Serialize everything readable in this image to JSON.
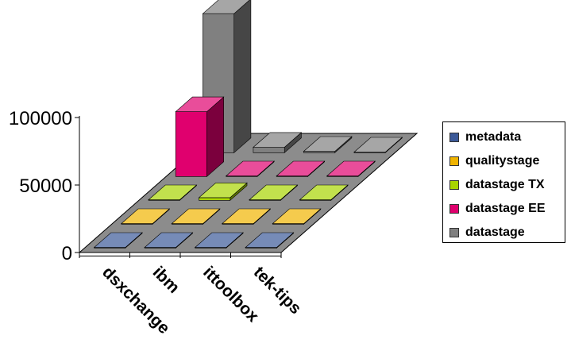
{
  "chart_data": {
    "type": "bar",
    "subtype": "3d-column",
    "title": "",
    "xlabel": "",
    "ylabel": "",
    "categories": [
      "dsxchange",
      "ibm",
      "ittoolbox",
      "tek-tips"
    ],
    "series": [
      {
        "name": "metadata",
        "color": "#3B5998",
        "values": [
          0,
          0,
          0,
          0
        ]
      },
      {
        "name": "qualitystage",
        "color": "#F0B400",
        "values": [
          0,
          0,
          0,
          0
        ]
      },
      {
        "name": "datastage TX",
        "color": "#A8D400",
        "values": [
          0,
          2000,
          0,
          0
        ]
      },
      {
        "name": "datastage EE",
        "color": "#E0006E",
        "values": [
          48000,
          0,
          0,
          0
        ]
      },
      {
        "name": "datastage",
        "color": "#808080",
        "values": [
          103000,
          4000,
          1000,
          0
        ]
      }
    ],
    "yticks": [
      0,
      50000,
      100000
    ],
    "ylim": [
      0,
      100000
    ],
    "legend_position": "right",
    "floor_color": "#8C8C8C"
  }
}
